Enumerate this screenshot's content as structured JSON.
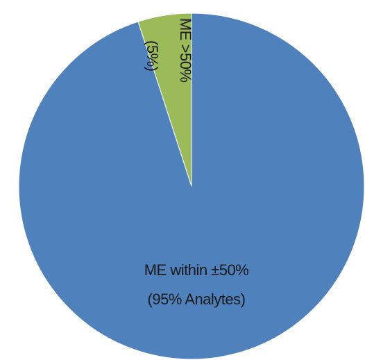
{
  "chart_data": {
    "type": "pie",
    "categories": [
      "ME within ±50%",
      "ME >50%"
    ],
    "values": [
      95,
      5
    ],
    "value_labels": [
      "(95% Analytes)",
      "(5%)"
    ],
    "colors": [
      "#4f81bd",
      "#9bbb59"
    ]
  }
}
